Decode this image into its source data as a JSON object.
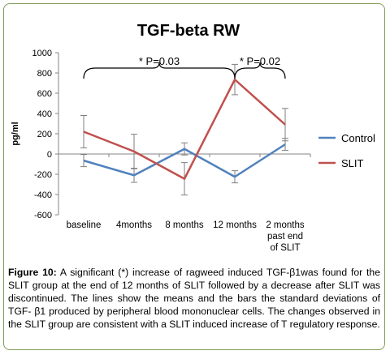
{
  "chart_data": {
    "type": "line",
    "title": "TGF-beta RW",
    "ylabel": "pg/ml",
    "xlabel": "",
    "categories": [
      "baseline",
      "4months",
      "8 months",
      "12 months",
      "2 months past end of SLIT"
    ],
    "category_lines": [
      [
        "baseline"
      ],
      [
        "4months"
      ],
      [
        "8 months"
      ],
      [
        "12 months"
      ],
      [
        "2 months",
        "past end",
        "of SLIT"
      ]
    ],
    "ylim": [
      -600,
      1000
    ],
    "yticks": [
      1000,
      800,
      600,
      400,
      200,
      0,
      -200,
      -400,
      -600
    ],
    "grid": false,
    "legend_position": "right",
    "series": [
      {
        "name": "Control",
        "color": "#4f81bd",
        "values": [
          -65,
          -210,
          50,
          -225,
          95
        ],
        "error": [
          60,
          70,
          60,
          60,
          60
        ]
      },
      {
        "name": "SLIT",
        "color": "#c0504d",
        "values": [
          220,
          25,
          -245,
          735,
          290
        ],
        "error": [
          160,
          170,
          160,
          150,
          160
        ]
      }
    ],
    "annotations": [
      {
        "text": "*  P=0.03",
        "from": "baseline",
        "to": "12 months"
      },
      {
        "text": "*  P=0.02",
        "from": "12 months",
        "to": "2 months past end of SLIT"
      }
    ]
  },
  "caption": {
    "label": "Figure 10:",
    "text": " A significant (*) increase of ragweed induced TGF-β1was found for the SLIT group at the end of 12 months of SLIT followed by a decrease after SLIT was discontinued. The lines show the means and the bars the standard deviations of TGF- β1 produced by peripheral blood mononuclear cells. The changes observed in the SLIT group are consistent with a SLIT induced increase of T regulatory response."
  }
}
